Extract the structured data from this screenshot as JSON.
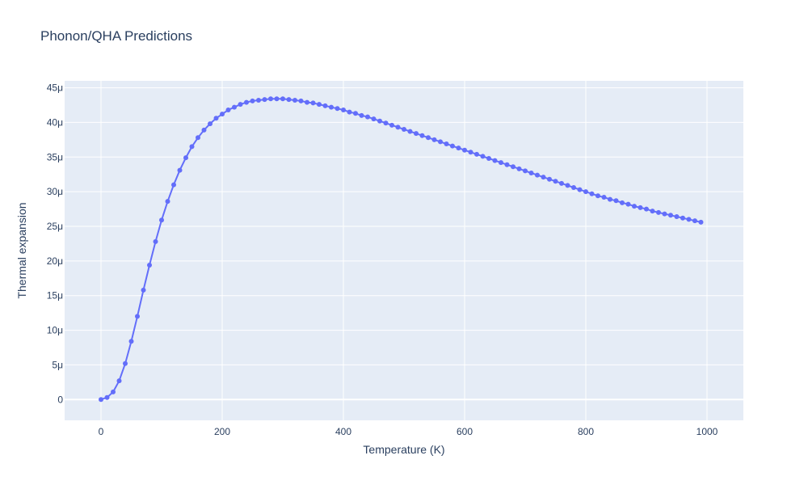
{
  "chart_data": {
    "type": "line",
    "title": "Phonon/QHA Predictions",
    "xlabel": "Temperature (K)",
    "ylabel": "Thermal expansion",
    "xlim": [
      -60,
      1060
    ],
    "ylim": [
      -3e-06,
      4.6e-05
    ],
    "grid": true,
    "xticks": [
      0,
      200,
      400,
      600,
      800,
      1000
    ],
    "xtick_labels": [
      "0",
      "200",
      "400",
      "600",
      "800",
      "1000"
    ],
    "yticks": [
      0,
      5e-06,
      1e-05,
      1.5e-05,
      2e-05,
      2.5e-05,
      3e-05,
      3.5e-05,
      4e-05,
      4.5e-05
    ],
    "ytick_labels": [
      "0",
      "5μ",
      "10μ",
      "15μ",
      "20μ",
      "25μ",
      "30μ",
      "35μ",
      "40μ",
      "45μ"
    ],
    "colors": {
      "plot_bg": "#e5ecf6",
      "grid": "#ffffff",
      "series": "#636efa",
      "text": "#2a3f5f"
    },
    "series": [
      {
        "mode": "lines+markers",
        "x": [
          0,
          10,
          20,
          30,
          40,
          50,
          60,
          70,
          80,
          90,
          100,
          110,
          120,
          130,
          140,
          150,
          160,
          170,
          180,
          190,
          200,
          210,
          220,
          230,
          240,
          250,
          260,
          270,
          280,
          290,
          300,
          310,
          320,
          330,
          340,
          350,
          360,
          370,
          380,
          390,
          400,
          410,
          420,
          430,
          440,
          450,
          460,
          470,
          480,
          490,
          500,
          510,
          520,
          530,
          540,
          550,
          560,
          570,
          580,
          590,
          600,
          610,
          620,
          630,
          640,
          650,
          660,
          670,
          680,
          690,
          700,
          710,
          720,
          730,
          740,
          750,
          760,
          770,
          780,
          790,
          800,
          810,
          820,
          830,
          840,
          850,
          860,
          870,
          880,
          890,
          900,
          910,
          920,
          930,
          940,
          950,
          960,
          970,
          980,
          990
        ],
        "y": [
          0.0,
          3e-07,
          1.1e-06,
          2.7e-06,
          5.2e-06,
          8.4e-06,
          1.2e-05,
          1.58e-05,
          1.94e-05,
          2.28e-05,
          2.59e-05,
          2.86e-05,
          3.1e-05,
          3.31e-05,
          3.49e-05,
          3.65e-05,
          3.78e-05,
          3.89e-05,
          3.98e-05,
          4.06e-05,
          4.12e-05,
          4.18e-05,
          4.22e-05,
          4.26e-05,
          4.29e-05,
          4.31e-05,
          4.32e-05,
          4.33e-05,
          4.34e-05,
          4.34e-05,
          4.34e-05,
          4.33e-05,
          4.32e-05,
          4.31e-05,
          4.29e-05,
          4.28e-05,
          4.26e-05,
          4.24e-05,
          4.22e-05,
          4.2e-05,
          4.18e-05,
          4.15e-05,
          4.13e-05,
          4.1e-05,
          4.08e-05,
          4.05e-05,
          4.02e-05,
          3.99e-05,
          3.96e-05,
          3.93e-05,
          3.9e-05,
          3.87e-05,
          3.84e-05,
          3.81e-05,
          3.78e-05,
          3.75e-05,
          3.72e-05,
          3.69e-05,
          3.66e-05,
          3.63e-05,
          3.6e-05,
          3.57e-05,
          3.54e-05,
          3.51e-05,
          3.48e-05,
          3.45e-05,
          3.42e-05,
          3.39e-05,
          3.36e-05,
          3.33e-05,
          3.3e-05,
          3.27e-05,
          3.24e-05,
          3.21e-05,
          3.18e-05,
          3.15e-05,
          3.12e-05,
          3.09e-05,
          3.06e-05,
          3.03e-05,
          3e-05,
          2.97e-05,
          2.94e-05,
          2.92e-05,
          2.89e-05,
          2.87e-05,
          2.84e-05,
          2.82e-05,
          2.79e-05,
          2.77e-05,
          2.75e-05,
          2.72e-05,
          2.7e-05,
          2.68e-05,
          2.66e-05,
          2.64e-05,
          2.62e-05,
          2.6e-05,
          2.58e-05,
          2.56e-05
        ]
      }
    ]
  }
}
